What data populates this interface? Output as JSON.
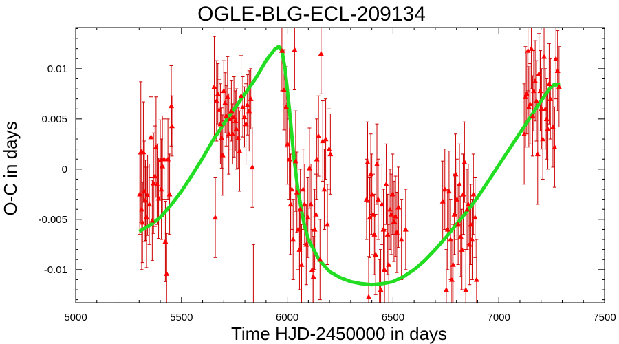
{
  "chart_data": {
    "type": "scatter",
    "title": "OGLE-BLG-ECL-209134",
    "xlabel": "Time HJD-2450000 in days",
    "ylabel": "O-C in days",
    "xlim": [
      5000,
      7500
    ],
    "ylim": [
      -0.0133,
      0.0141
    ],
    "x_ticks": [
      5000,
      5500,
      6000,
      6500,
      7000,
      7500
    ],
    "x_tick_labels": [
      "5000",
      "5500",
      "6000",
      "6500",
      "7000",
      "7500"
    ],
    "y_ticks": [
      -0.01,
      -0.005,
      0,
      0.005,
      0.01
    ],
    "y_tick_labels": [
      "-0.01",
      "-0.005",
      "0",
      "0.005",
      "0.01"
    ],
    "colors": {
      "points": "#ff0000",
      "errorbars": "#cc0000",
      "fit": "#22dd22"
    },
    "series": [
      {
        "kind": "points-with-errorbars",
        "marker": "triangle",
        "points": [
          [
            5303,
            -0.0025,
            0.004
          ],
          [
            5308,
            0.0017,
            0.007
          ],
          [
            5312,
            -0.004,
            0.006
          ],
          [
            5316,
            -0.0053,
            0.004
          ],
          [
            5320,
            0.0017,
            0.005
          ],
          [
            5325,
            -0.0022,
            0.005
          ],
          [
            5330,
            -0.0031,
            0.004
          ],
          [
            5335,
            -0.0048,
            0.005
          ],
          [
            5340,
            -0.0026,
            0.004
          ],
          [
            5348,
            -0.0035,
            0.004
          ],
          [
            5356,
            0.0032,
            0.004
          ],
          [
            5362,
            -0.0051,
            0.004
          ],
          [
            5368,
            -0.0014,
            0.005
          ],
          [
            5375,
            -0.0007,
            0.005
          ],
          [
            5380,
            0.0022,
            0.005
          ],
          [
            5385,
            -0.0015,
            0.004
          ],
          [
            5392,
            -0.0029,
            0.004
          ],
          [
            5400,
            0.0009,
            0.004
          ],
          [
            5405,
            -0.002,
            0.005
          ],
          [
            5410,
            0.0003,
            0.005
          ],
          [
            5418,
            0.001,
            0.004
          ],
          [
            5424,
            -0.0072,
            0.004
          ],
          [
            5430,
            -0.0104,
            0.004
          ],
          [
            5436,
            0.001,
            0.004
          ],
          [
            5444,
            -0.0025,
            0.004
          ],
          [
            5452,
            0.0063,
            0.004
          ],
          [
            5455,
            0.0043,
            0.003
          ],
          [
            5655,
            0.0082,
            0.005
          ],
          [
            5660,
            -0.0048,
            0.004
          ],
          [
            5666,
            0.0068,
            0.004
          ],
          [
            5672,
            0.0075,
            0.003
          ],
          [
            5678,
            0.0059,
            0.003
          ],
          [
            5684,
            0.0045,
            0.004
          ],
          [
            5690,
            0.0031,
            0.003
          ],
          [
            5695,
            0.0014,
            0.004
          ],
          [
            5700,
            0.0078,
            0.003
          ],
          [
            5706,
            0.0066,
            0.003
          ],
          [
            5712,
            0.0053,
            0.003
          ],
          [
            5718,
            0.0072,
            0.004
          ],
          [
            5724,
            0.0035,
            0.004
          ],
          [
            5730,
            0.005,
            0.003
          ],
          [
            5736,
            0.0058,
            0.003
          ],
          [
            5742,
            0.0035,
            0.003
          ],
          [
            5748,
            0.0052,
            0.004
          ],
          [
            5755,
            0.0048,
            0.003
          ],
          [
            5760,
            0.004,
            0.004
          ],
          [
            5768,
            0.0031,
            0.003
          ],
          [
            5775,
            0.0018,
            0.004
          ],
          [
            5782,
            0.0073,
            0.004
          ],
          [
            5790,
            0.0062,
            0.003
          ],
          [
            5798,
            0.0052,
            0.003
          ],
          [
            5805,
            0.0045,
            0.004
          ],
          [
            5812,
            0.0064,
            0.003
          ],
          [
            5820,
            0.0058,
            0.004
          ],
          [
            5828,
            0.007,
            0.003
          ],
          [
            5835,
            0.0002,
            0.004
          ],
          [
            5840,
            -0.0135,
            0.006
          ],
          [
            5975,
            0.0118,
            0.004
          ],
          [
            5985,
            0.0079,
            0.004
          ],
          [
            5995,
            0.0062,
            0.004
          ],
          [
            6002,
            0.0025,
            0.004
          ],
          [
            6010,
            0.001,
            0.004
          ],
          [
            6016,
            -0.0035,
            0.005
          ],
          [
            6022,
            -0.002,
            0.004
          ],
          [
            6028,
            -0.007,
            0.004
          ],
          [
            6035,
            0.0119,
            0.004
          ],
          [
            6040,
            0.0008,
            0.005
          ],
          [
            6046,
            -0.0023,
            0.004
          ],
          [
            6052,
            -0.006,
            0.004
          ],
          [
            6058,
            -0.008,
            0.004
          ],
          [
            6062,
            -0.004,
            0.004
          ],
          [
            6068,
            -0.0095,
            0.004
          ],
          [
            6075,
            -0.002,
            0.004
          ],
          [
            6082,
            -0.0035,
            0.004
          ],
          [
            6090,
            -0.0075,
            0.004
          ],
          [
            6098,
            -0.0048,
            0.004
          ],
          [
            6105,
            0.0001,
            0.004
          ],
          [
            6112,
            -0.0035,
            0.004
          ],
          [
            6118,
            -0.01,
            0.004
          ],
          [
            6124,
            -0.0107,
            0.004
          ],
          [
            6130,
            -0.006,
            0.004
          ],
          [
            6136,
            -0.0045,
            0.004
          ],
          [
            6140,
            0.001,
            0.004
          ],
          [
            6148,
            0.0033,
            0.004
          ],
          [
            6155,
            -0.009,
            0.004
          ],
          [
            6160,
            0.0115,
            0.004
          ],
          [
            6168,
            0.0028,
            0.004
          ],
          [
            6175,
            -0.002,
            0.004
          ],
          [
            6182,
            0.003,
            0.004
          ],
          [
            6190,
            -0.0055,
            0.004
          ],
          [
            6198,
            0.002,
            0.004
          ],
          [
            6204,
            0.0015,
            0.004
          ],
          [
            6375,
            -0.003,
            0.004
          ],
          [
            6380,
            0.0007,
            0.004
          ],
          [
            6385,
            -0.0127,
            0.004
          ],
          [
            6390,
            -0.0048,
            0.004
          ],
          [
            6395,
            -0.0005,
            0.004
          ],
          [
            6400,
            -0.0025,
            0.004
          ],
          [
            6406,
            -0.0045,
            0.004
          ],
          [
            6412,
            -0.0065,
            0.004
          ],
          [
            6418,
            -0.0085,
            0.004
          ],
          [
            6424,
            0.0005,
            0.004
          ],
          [
            6430,
            -0.003,
            0.004
          ],
          [
            6436,
            -0.014,
            0.005
          ],
          [
            6442,
            -0.012,
            0.004
          ],
          [
            6448,
            -0.0035,
            0.004
          ],
          [
            6455,
            -0.006,
            0.004
          ],
          [
            6460,
            -0.01,
            0.004
          ],
          [
            6468,
            -0.0015,
            0.004
          ],
          [
            6475,
            -0.0065,
            0.004
          ],
          [
            6480,
            -0.0095,
            0.004
          ],
          [
            6486,
            -0.004,
            0.004
          ],
          [
            6492,
            -0.0045,
            0.004
          ],
          [
            6498,
            -0.0025,
            0.004
          ],
          [
            6505,
            -0.0052,
            0.004
          ],
          [
            6512,
            -0.0047,
            0.004
          ],
          [
            6518,
            -0.0063,
            0.004
          ],
          [
            6526,
            -0.0038,
            0.004
          ],
          [
            6540,
            -0.007,
            0.004
          ],
          [
            6560,
            -0.006,
            0.004
          ],
          [
            6735,
            -0.0032,
            0.004
          ],
          [
            6745,
            -0.002,
            0.004
          ],
          [
            6752,
            -0.012,
            0.004
          ],
          [
            6758,
            -0.006,
            0.004
          ],
          [
            6765,
            -0.0022,
            0.004
          ],
          [
            6772,
            -0.007,
            0.004
          ],
          [
            6778,
            -0.011,
            0.004
          ],
          [
            6784,
            -0.0095,
            0.004
          ],
          [
            6790,
            -0.0045,
            0.004
          ],
          [
            6796,
            -0.0005,
            0.004
          ],
          [
            6802,
            -0.003,
            0.004
          ],
          [
            6808,
            -0.0055,
            0.004
          ],
          [
            6814,
            -0.0015,
            0.004
          ],
          [
            6820,
            -0.0067,
            0.004
          ],
          [
            6826,
            -0.008,
            0.004
          ],
          [
            6832,
            -0.0025,
            0.004
          ],
          [
            6838,
            0.0007,
            0.004
          ],
          [
            6844,
            -0.012,
            0.004
          ],
          [
            6850,
            -0.004,
            0.004
          ],
          [
            6856,
            -0.0035,
            0.004
          ],
          [
            6862,
            -0.0075,
            0.004
          ],
          [
            6868,
            -0.0055,
            0.004
          ],
          [
            6874,
            -0.007,
            0.004
          ],
          [
            6880,
            -0.0025,
            0.004
          ],
          [
            6888,
            -0.0048,
            0.004
          ],
          [
            6895,
            -0.011,
            0.004
          ],
          [
            7120,
            0.0035,
            0.005
          ],
          [
            7126,
            0.0072,
            0.005
          ],
          [
            7132,
            0.0075,
            0.004
          ],
          [
            7138,
            0.0118,
            0.004
          ],
          [
            7142,
            0.0062,
            0.004
          ],
          [
            7148,
            0.0065,
            0.004
          ],
          [
            7154,
            0.012,
            0.004
          ],
          [
            7160,
            0.0053,
            0.004
          ],
          [
            7165,
            0.0078,
            0.004
          ],
          [
            7172,
            0.0088,
            0.004
          ],
          [
            7178,
            0.0068,
            0.004
          ],
          [
            7184,
            0.0015,
            0.005
          ],
          [
            7190,
            0.0095,
            0.004
          ],
          [
            7196,
            0.0078,
            0.004
          ],
          [
            7202,
            0.006,
            0.004
          ],
          [
            7208,
            0.003,
            0.004
          ],
          [
            7214,
            0.0112,
            0.004
          ],
          [
            7220,
            0.006,
            0.004
          ],
          [
            7226,
            0.005,
            0.004
          ],
          [
            7232,
            0.004,
            0.004
          ],
          [
            7238,
            0.0085,
            0.004
          ],
          [
            7244,
            0.007,
            0.004
          ],
          [
            7256,
            0.0042,
            0.004
          ],
          [
            7264,
            0.0022,
            0.004
          ],
          [
            7270,
            0.011,
            0.004
          ],
          [
            7278,
            0.0098,
            0.004
          ],
          [
            7285,
            0.0082,
            0.004
          ]
        ]
      },
      {
        "kind": "fit-curve",
        "points": [
          [
            5300,
            -0.0062
          ],
          [
            5350,
            -0.0056
          ],
          [
            5400,
            -0.0048
          ],
          [
            5450,
            -0.0036
          ],
          [
            5500,
            -0.0022
          ],
          [
            5550,
            -0.0006
          ],
          [
            5600,
            0.0011
          ],
          [
            5650,
            0.0029
          ],
          [
            5700,
            0.0045
          ],
          [
            5750,
            0.006
          ],
          [
            5800,
            0.0075
          ],
          [
            5850,
            0.009
          ],
          [
            5900,
            0.0108
          ],
          [
            5940,
            0.0119
          ],
          [
            5960,
            0.0122
          ],
          [
            5975,
            0.0118
          ],
          [
            5990,
            0.01
          ],
          [
            6010,
            0.006
          ],
          [
            6030,
            0.0015
          ],
          [
            6050,
            -0.002
          ],
          [
            6080,
            -0.0055
          ],
          [
            6100,
            -0.007
          ],
          [
            6150,
            -0.009
          ],
          [
            6200,
            -0.0102
          ],
          [
            6250,
            -0.0108
          ],
          [
            6300,
            -0.0112
          ],
          [
            6350,
            -0.0114
          ],
          [
            6400,
            -0.0115
          ],
          [
            6450,
            -0.0114
          ],
          [
            6500,
            -0.0112
          ],
          [
            6550,
            -0.0107
          ],
          [
            6600,
            -0.01
          ],
          [
            6650,
            -0.0091
          ],
          [
            6700,
            -0.008
          ],
          [
            6750,
            -0.0068
          ],
          [
            6800,
            -0.0055
          ],
          [
            6850,
            -0.0042
          ],
          [
            6900,
            -0.0028
          ],
          [
            6950,
            -0.0012
          ],
          [
            7000,
            0.0004
          ],
          [
            7050,
            0.002
          ],
          [
            7100,
            0.0036
          ],
          [
            7150,
            0.0052
          ],
          [
            7200,
            0.0068
          ],
          [
            7240,
            0.008
          ],
          [
            7260,
            0.0084
          ],
          [
            7290,
            0.0084
          ]
        ]
      }
    ]
  }
}
